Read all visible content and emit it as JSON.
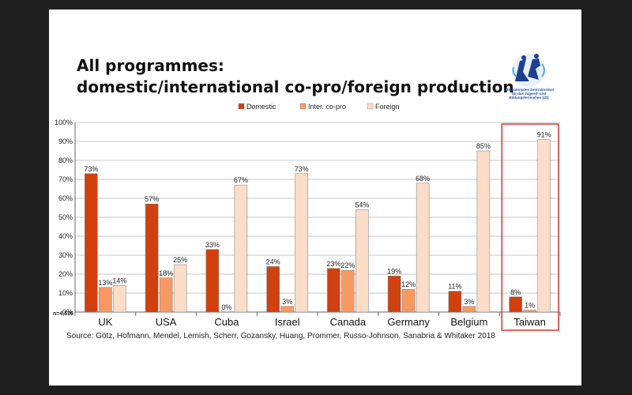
{
  "slide": {
    "title_line1": "All programmes:",
    "title_line2": "domestic/international co-pro/foreign production",
    "logo_text": [
      "Internationales Zentralinstitut",
      "für das Jugend- und",
      "Bildungsfernsehen (IZI)"
    ],
    "highlight_color": "#e03030"
  },
  "chart_data": {
    "type": "bar",
    "categories": [
      "UK",
      "USA",
      "Cuba",
      "Israel",
      "Canada",
      "Germany",
      "Belgium",
      "Taiwan"
    ],
    "series": [
      {
        "name": "Domestic",
        "color": "#d1400f",
        "values": [
          73,
          57,
          33,
          24,
          23,
          19,
          11,
          8
        ],
        "labels": [
          "73%",
          "57%",
          "33%",
          "24%",
          "23%",
          "19%",
          "11%",
          "8%"
        ]
      },
      {
        "name": "Inter. co-pro",
        "color": "#f79a62",
        "values": [
          13,
          18,
          0,
          3,
          22,
          12,
          3,
          1
        ],
        "labels": [
          "13%",
          "18%",
          "0%",
          "3%",
          "22%",
          "12%",
          "3%",
          "1%"
        ]
      },
      {
        "name": "Foreign",
        "color": "#fbddc8",
        "values": [
          14,
          25,
          67,
          73,
          54,
          68,
          85,
          91
        ],
        "labels": [
          "14%",
          "25%",
          "67%",
          "73%",
          "54%",
          "68%",
          "85%",
          "91%"
        ]
      }
    ],
    "ylim": [
      0,
      100
    ],
    "yticks": [
      "0%",
      "10%",
      "20%",
      "30%",
      "40%",
      "50%",
      "60%",
      "70%",
      "80%",
      "90%",
      "100%"
    ],
    "grid": true,
    "legend_position": "top",
    "highlighted_category": "Taiwan",
    "n_label": "n=4,535",
    "source": "Source: Götz, Hofmann, Mendel, Lemish, Scherr, Gozansky, Huang, Prommer, Russo-Johnson, Sanabria & Whitaker 2018"
  }
}
